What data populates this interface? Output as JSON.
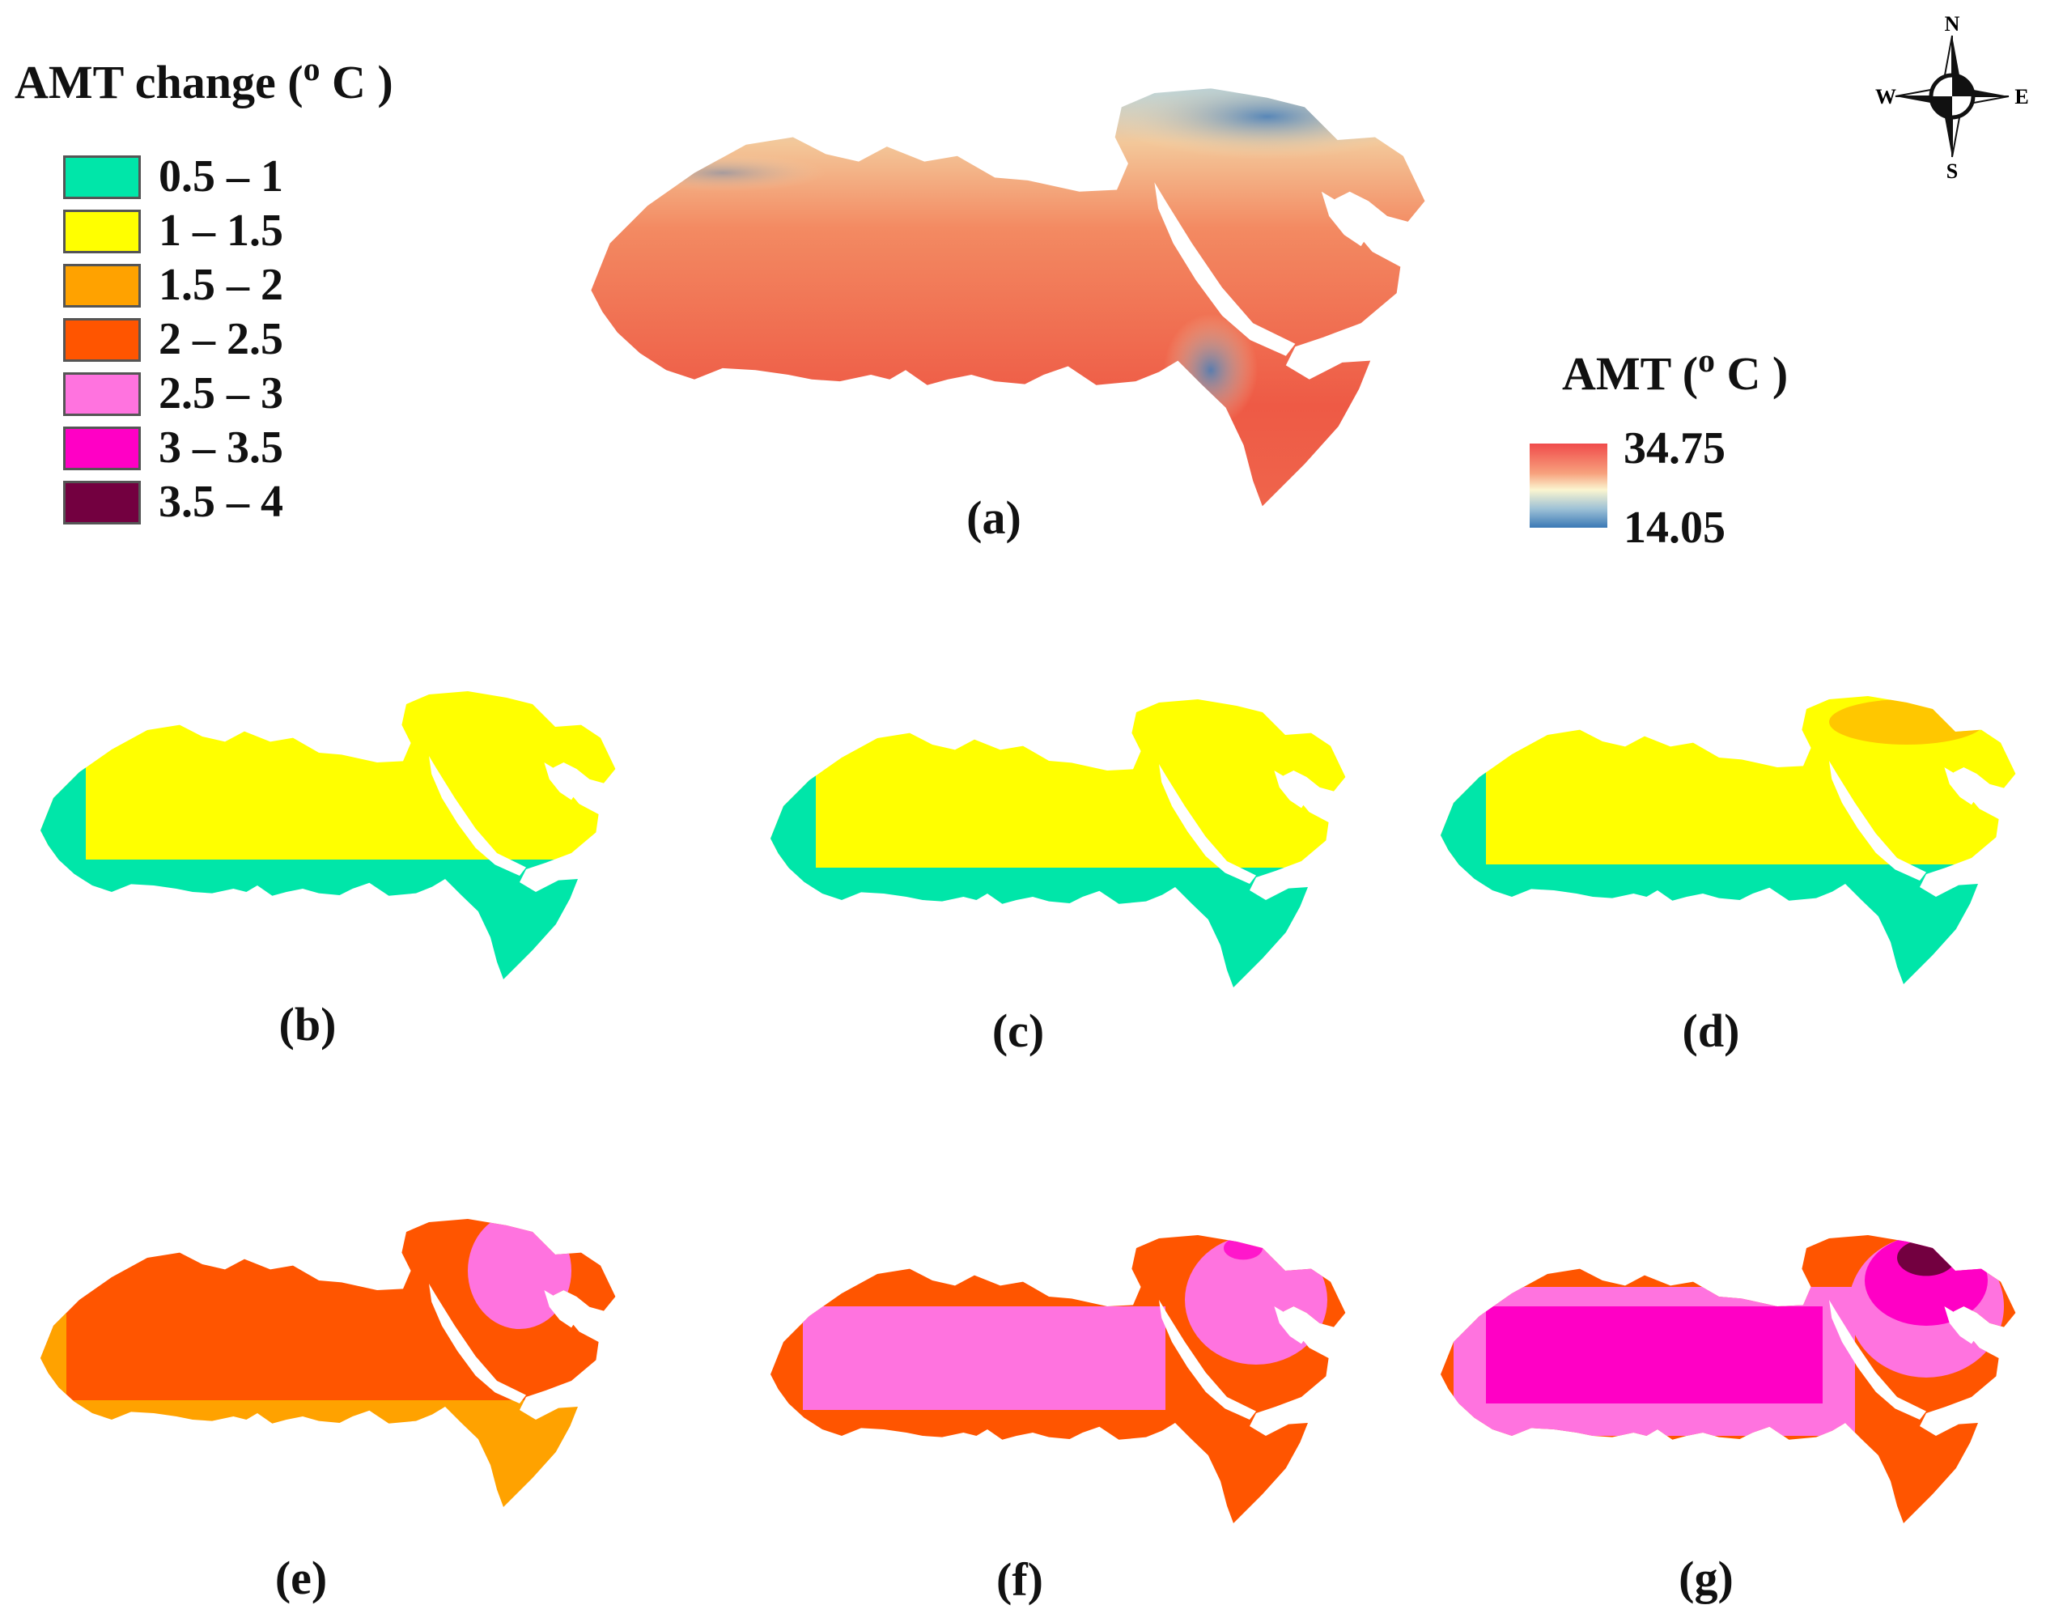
{
  "legend": {
    "title": "AMT change",
    "unit_sup": "o",
    "unit_tail": "C )",
    "open_paren": "(",
    "classes": [
      {
        "label": "0.5 – 1",
        "color": "#00e6a9"
      },
      {
        "label": "1 – 1.5",
        "color": "#ffff00"
      },
      {
        "label": "1.5 – 2",
        "color": "#ffa200"
      },
      {
        "label": "2 – 2.5",
        "color": "#ff5500"
      },
      {
        "label": "2.5 – 3",
        "color": "#ff73df"
      },
      {
        "label": "3 – 3.5",
        "color": "#ff00c5"
      },
      {
        "label": "3.5 – 4",
        "color": "#730040"
      }
    ]
  },
  "ramp": {
    "title": "AMT",
    "open_paren": "(",
    "unit_sup": "o",
    "unit_tail": "C )",
    "max": "34.75",
    "min": "14.05",
    "max_color": "#f04b4b",
    "min_color": "#3a78b5"
  },
  "compass": {
    "n": "N",
    "s": "S",
    "e": "E",
    "w": "W"
  },
  "panels": [
    {
      "id": "a",
      "label": "(a)"
    },
    {
      "id": "b",
      "label": "(b)"
    },
    {
      "id": "c",
      "label": "(c)"
    },
    {
      "id": "d",
      "label": "(d)"
    },
    {
      "id": "e",
      "label": "(e)"
    },
    {
      "id": "f",
      "label": "(f)"
    },
    {
      "id": "g",
      "label": "(g)"
    }
  ]
}
